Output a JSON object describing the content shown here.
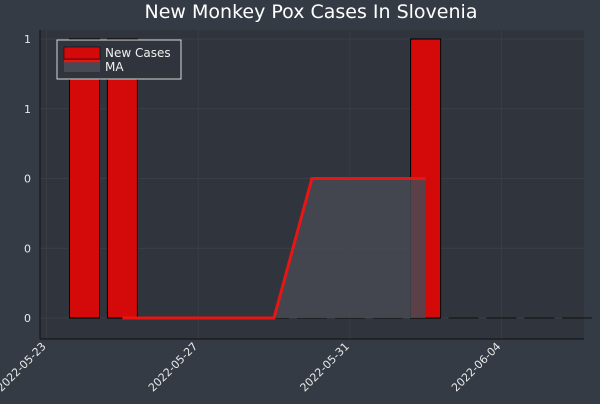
{
  "chart_data": {
    "type": "bar",
    "title": "New Monkey Pox Cases In Slovenia",
    "xlabel": "",
    "ylabel": "",
    "x": [
      "2022-05-24",
      "2022-05-25",
      "2022-05-26",
      "2022-05-27",
      "2022-05-28",
      "2022-05-29",
      "2022-05-30",
      "2022-05-31",
      "2022-06-01",
      "2022-06-02",
      "2022-06-03",
      "2022-06-04",
      "2022-06-05",
      "2022-06-06"
    ],
    "series": [
      {
        "name": "New Cases",
        "type": "bar",
        "color": "#d40a0a",
        "values": [
          1,
          1,
          0,
          0,
          0,
          0,
          0,
          0,
          0,
          1,
          0,
          0,
          0,
          0
        ]
      },
      {
        "name": "MA",
        "type": "area-line",
        "color": "#e81515",
        "fill": "#474a52",
        "values": [
          null,
          0,
          0,
          0,
          0,
          0,
          0.5,
          0.5,
          0.5,
          0.5,
          null,
          null,
          null,
          null
        ]
      }
    ],
    "x_ticks": [
      "2022-05-23",
      "2022-05-27",
      "2022-05-31",
      "2022-06-04"
    ],
    "y_tick_labels": [
      "0",
      "0",
      "0",
      "1",
      "1"
    ],
    "ylim": [
      0,
      1
    ],
    "grid": true,
    "legend_position": "top-left"
  }
}
